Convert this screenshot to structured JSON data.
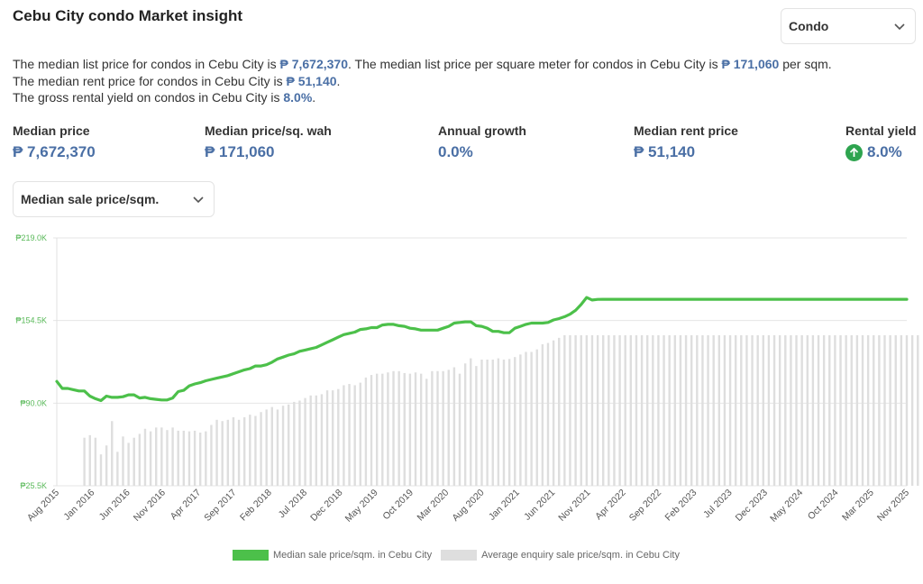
{
  "page": {
    "title": "Cebu City condo Market insight"
  },
  "property_select": {
    "value": "Condo"
  },
  "summary": {
    "line1_a": "The median list price for condos in Cebu City is ",
    "line1_b": "₱ 7,672,370",
    "line1_c": ". The median list price per square meter for condos in Cebu City is ",
    "line1_d": "₱ 171,060",
    "line1_e": " per sqm.",
    "line2_a": "The median rent price for condos in Cebu City is ",
    "line2_b": "₱ 51,140",
    "line2_c": ".",
    "line3_a": "The gross rental yield on condos in Cebu City is ",
    "line3_b": "8.0%",
    "line3_c": "."
  },
  "stats": [
    {
      "label": "Median price",
      "value": "₱ 7,672,370"
    },
    {
      "label": "Median price/sq. wah",
      "value": "₱ 171,060"
    },
    {
      "label": "Annual growth",
      "value": "0.0%"
    },
    {
      "label": "Median rent price",
      "value": "₱ 51,140"
    },
    {
      "label": "Rental yield",
      "value": "8.0%",
      "icon": "arrow-up-icon"
    }
  ],
  "metric_select": {
    "value": "Median sale price/sqm."
  },
  "colors": {
    "accent": "#4a6fa5",
    "line": "#4cc04a",
    "bar": "#dedede",
    "yield_icon": "#2ea44f",
    "tick": "#59b959"
  },
  "chart_data": {
    "type": "line",
    "ylim": [
      25500,
      219000
    ],
    "y_ticks": [
      "₱25.5K",
      "₱90.0K",
      "₱154.5K",
      "₱219.0K"
    ],
    "y_tick_values": [
      25500,
      90000,
      154500,
      219000
    ],
    "x_ticks": [
      "Aug 2015",
      "Jan 2016",
      "Jun 2016",
      "Nov 2016",
      "Apr 2017",
      "Sep 2017",
      "Feb 2018",
      "Jul 2018",
      "Dec 2018",
      "May 2019",
      "Oct 2019",
      "Mar 2020",
      "Aug 2020",
      "Jan 2021",
      "Jun 2021",
      "Nov 2021",
      "Apr 2022",
      "Sep 2022",
      "Feb 2023",
      "Jul 2023",
      "Dec 2023",
      "May 2024",
      "Oct 2024",
      "Mar 2025",
      "Nov 2025"
    ],
    "x_start": "Aug 2015",
    "grid": true,
    "legend": "bottom",
    "series": [
      {
        "name": "Median sale price/sqm. in Cebu City",
        "kind": "line",
        "values": [
          107000,
          101500,
          101500,
          100500,
          99500,
          99500,
          95500,
          93500,
          92000,
          95500,
          94500,
          94500,
          95000,
          96500,
          96500,
          94000,
          94500,
          93500,
          93000,
          92500,
          92500,
          94000,
          99000,
          100000,
          103500,
          105000,
          106000,
          107500,
          108500,
          109500,
          110500,
          111500,
          113000,
          114500,
          116000,
          117000,
          119000,
          119000,
          120000,
          122000,
          124500,
          126000,
          127500,
          128500,
          130500,
          131500,
          132500,
          133500,
          135500,
          137500,
          139500,
          141500,
          143500,
          144500,
          145500,
          147500,
          148000,
          149000,
          149000,
          151000,
          151500,
          151500,
          150500,
          150000,
          148500,
          148000,
          147000,
          147000,
          147000,
          147000,
          148500,
          150000,
          152500,
          153000,
          153500,
          153500,
          150500,
          150000,
          148500,
          146000,
          146000,
          145000,
          145000,
          148500,
          150000,
          151500,
          152500,
          152500,
          152500,
          153000,
          155000,
          156000,
          157500,
          159500,
          162500,
          167000,
          172500,
          170500,
          171000,
          171060,
          171060,
          171060,
          171060,
          171060,
          171060,
          171060,
          171060,
          171060,
          171060,
          171060,
          171060,
          171060,
          171060,
          171060,
          171060,
          171060,
          171060,
          171060,
          171060,
          171060,
          171060,
          171060,
          171060,
          171060,
          171060,
          171060,
          171060,
          171060,
          171060,
          171060,
          171060,
          171060,
          171060,
          171060,
          171060,
          171060,
          171060,
          171060,
          171060,
          171060,
          171060,
          171060,
          171060,
          171060,
          171060,
          171060,
          171060,
          171060,
          171060,
          171060,
          171060,
          171060,
          171060,
          171060,
          171060
        ]
      },
      {
        "name": "Average enquiry sale price/sqm. in Cebu City",
        "kind": "bar",
        "values": [
          null,
          null,
          null,
          null,
          null,
          63000,
          65000,
          63000,
          50000,
          57000,
          76000,
          52000,
          64000,
          59000,
          63000,
          66000,
          70000,
          68000,
          71000,
          71000,
          69000,
          71000,
          68500,
          68500,
          68000,
          68500,
          67000,
          68000,
          73000,
          77000,
          76000,
          77000,
          79000,
          77000,
          79000,
          81000,
          80000,
          83000,
          85000,
          87000,
          85000,
          88000,
          89000,
          91000,
          92000,
          94000,
          96000,
          96000,
          97000,
          100000,
          100000,
          101000,
          104000,
          105000,
          104000,
          106000,
          110000,
          112000,
          113000,
          113000,
          114000,
          115000,
          115000,
          113500,
          113000,
          114000,
          113000,
          109000,
          115000,
          115000,
          115000,
          116000,
          118000,
          113000,
          121000,
          125000,
          119000,
          124000,
          124000,
          124000,
          125000,
          124000,
          124500,
          126000,
          128000,
          130000,
          130000,
          132000,
          136000,
          137000,
          139000,
          141000,
          143000,
          143000,
          143000,
          143000,
          143000,
          143000,
          143000,
          143000,
          143000,
          143000,
          143000,
          143000,
          143000,
          143000,
          143000,
          143000,
          143000,
          143000,
          143000,
          143000,
          143000,
          143000,
          143000,
          143000,
          143000,
          143000,
          143000,
          143000,
          143000,
          143000,
          143000,
          143000,
          143000,
          143000,
          143000,
          143000,
          143000,
          143000,
          143000,
          143000,
          143000,
          143000,
          143000,
          143000,
          143000,
          143000,
          143000,
          143000,
          143000,
          143000,
          143000,
          143000,
          143000,
          143000,
          143000,
          143000,
          143000,
          143000,
          143000,
          143000,
          143000,
          143000,
          143000,
          143000,
          143000
        ]
      }
    ]
  }
}
